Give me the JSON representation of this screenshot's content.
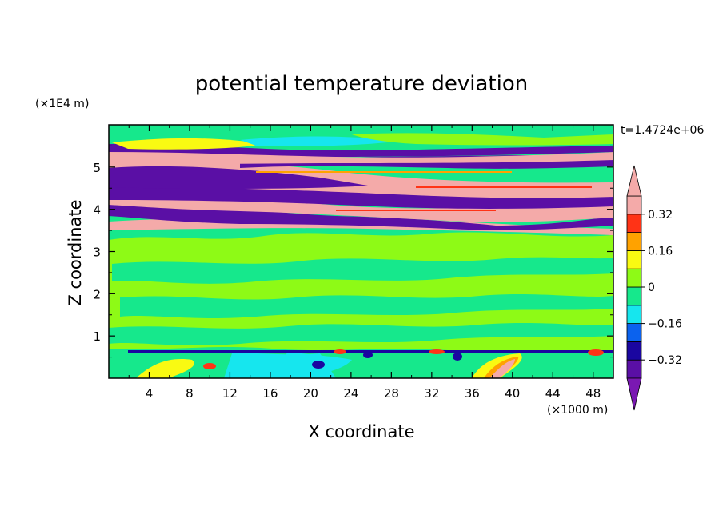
{
  "chart_data": {
    "type": "heatmap",
    "title": "potential temperature deviation",
    "xlabel": "X coordinate",
    "ylabel": "Z coordinate",
    "x_unit": "(×1000 m)",
    "y_unit": "(×1E4 m)",
    "time_label": "t=1.4724e+06",
    "x_range": [
      0,
      50
    ],
    "y_range": [
      0,
      6
    ],
    "x_ticks": [
      "4",
      "8",
      "12",
      "16",
      "20",
      "24",
      "28",
      "32",
      "36",
      "40",
      "44",
      "48"
    ],
    "y_ticks": [
      "1",
      "2",
      "3",
      "4",
      "5"
    ],
    "colorbar": {
      "labels": [
        "0.32",
        "0.16",
        "0",
        "−0.16",
        "−0.32"
      ],
      "label_values": [
        0.32,
        0.16,
        0,
        -0.16,
        -0.32
      ],
      "levels": [
        -0.4,
        -0.32,
        -0.24,
        -0.16,
        -0.08,
        0,
        0.08,
        0.16,
        0.24,
        0.32,
        0.4
      ],
      "colors": [
        "#5a0fa5",
        "#1a06a0",
        "#0b62ee",
        "#16e6ee",
        "#16e88c",
        "#8efa16",
        "#f9fa12",
        "#ffa200",
        "#ff3316",
        "#f4aaa9"
      ],
      "over_color": "#f4aaa9",
      "under_color": "#7a18b2"
    },
    "background_color": "#16e88c",
    "fields": [
      {
        "z_range": [
          0,
          0.65
        ],
        "value": "mixed",
        "note_color": "#16e6ee"
      },
      {
        "z_range": [
          0.65,
          3.6
        ],
        "value": 0.04
      },
      {
        "z_range": [
          3.6,
          3.75
        ],
        "value": 0.4
      },
      {
        "z_range": [
          3.75,
          3.95
        ],
        "value": -0.4
      },
      {
        "z_range": [
          3.95,
          4.2
        ],
        "value": 0.4
      },
      {
        "z_range": [
          4.2,
          4.5
        ],
        "value": -0.4
      },
      {
        "z_range": [
          4.5,
          4.9
        ],
        "value": 0.4
      },
      {
        "z_range": [
          4.9,
          5.1
        ],
        "value": -0.4
      },
      {
        "z_range": [
          5.1,
          5.4
        ],
        "value": 0.4
      },
      {
        "z_range": [
          5.4,
          5.6
        ],
        "value": -0.4
      }
    ]
  }
}
